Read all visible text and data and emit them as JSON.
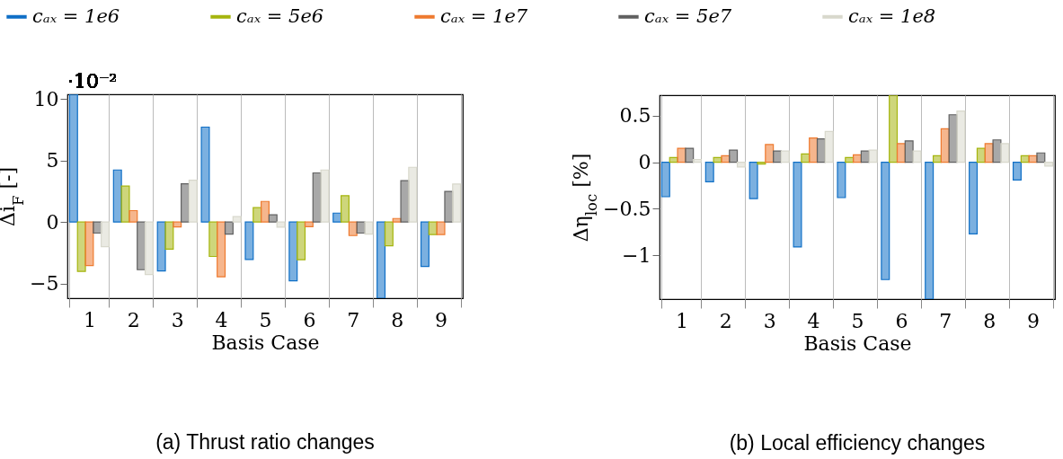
{
  "chart_data": [
    {
      "type": "bar",
      "title": "(a) Thrust ratio changes",
      "xlabel": "Basis Case",
      "ylabel": "Δi$_{F}$ [-]",
      "annotations": [
        "·10⁻²"
      ],
      "categories": [
        "1",
        "2",
        "3",
        "4",
        "5",
        "6",
        "7",
        "8",
        "9"
      ],
      "legend": "top",
      "grid": "x",
      "ylim": [
        -6.2,
        10.4
      ],
      "yticks": [
        -5,
        0,
        5,
        10
      ],
      "series": [
        {
          "name": "cₐₓ = 1e6",
          "color": "#0f6fc6",
          "values": [
            10.4,
            4.24,
            -3.98,
            7.73,
            -3.05,
            -4.78,
            0.73,
            -6.2,
            -3.61
          ]
        },
        {
          "name": "cₐₓ = 5e6",
          "color": "#a5b50e",
          "values": [
            -4.02,
            2.93,
            -2.2,
            -2.8,
            1.17,
            -3.07,
            2.15,
            -1.93,
            -1.02
          ]
        },
        {
          "name": "cₐₓ = 1e7",
          "color": "#ee7a2f",
          "values": [
            -3.54,
            0.93,
            -0.39,
            -4.46,
            1.68,
            -0.37,
            -1.1,
            0.29,
            -1.02
          ]
        },
        {
          "name": "cₐₓ = 5e7",
          "color": "#606060",
          "values": [
            -0.9,
            -3.88,
            3.12,
            -0.98,
            0.59,
            4.0,
            -0.9,
            3.37,
            2.49
          ]
        },
        {
          "name": "cₐₓ = 1e8",
          "color": "#d8d8cc",
          "values": [
            -2.0,
            -4.27,
            3.41,
            0.44,
            -0.41,
            4.24,
            -0.98,
            4.46,
            3.1
          ]
        }
      ]
    },
    {
      "type": "bar",
      "title": "(b) Local efficiency changes",
      "xlabel": "Basis Case",
      "ylabel": "Δη$_{loc}$ [%]",
      "categories": [
        "1",
        "2",
        "3",
        "4",
        "5",
        "6",
        "7",
        "8",
        "9"
      ],
      "grid": "x",
      "ylim": [
        -1.47,
        0.72
      ],
      "yticks": [
        -1,
        -0.5,
        0,
        0.5
      ],
      "series": [
        {
          "color": "#0f6fc6",
          "values": [
            -0.37,
            -0.21,
            -0.39,
            -0.91,
            -0.38,
            -1.26,
            -1.47,
            -0.77,
            -0.19
          ]
        },
        {
          "color": "#a5b50e",
          "values": [
            0.05,
            0.05,
            -0.02,
            0.09,
            0.05,
            0.72,
            0.07,
            0.15,
            0.07
          ]
        },
        {
          "color": "#ee7a2f",
          "values": [
            0.15,
            0.07,
            0.19,
            0.26,
            0.08,
            0.2,
            0.36,
            0.2,
            0.07
          ]
        },
        {
          "color": "#606060",
          "values": [
            0.15,
            0.13,
            0.12,
            0.25,
            0.12,
            0.23,
            0.51,
            0.24,
            0.1
          ]
        },
        {
          "color": "#d8d8cc",
          "values": [
            0.03,
            -0.05,
            0.12,
            0.33,
            0.13,
            0.12,
            0.55,
            0.2,
            -0.04
          ]
        }
      ]
    }
  ]
}
